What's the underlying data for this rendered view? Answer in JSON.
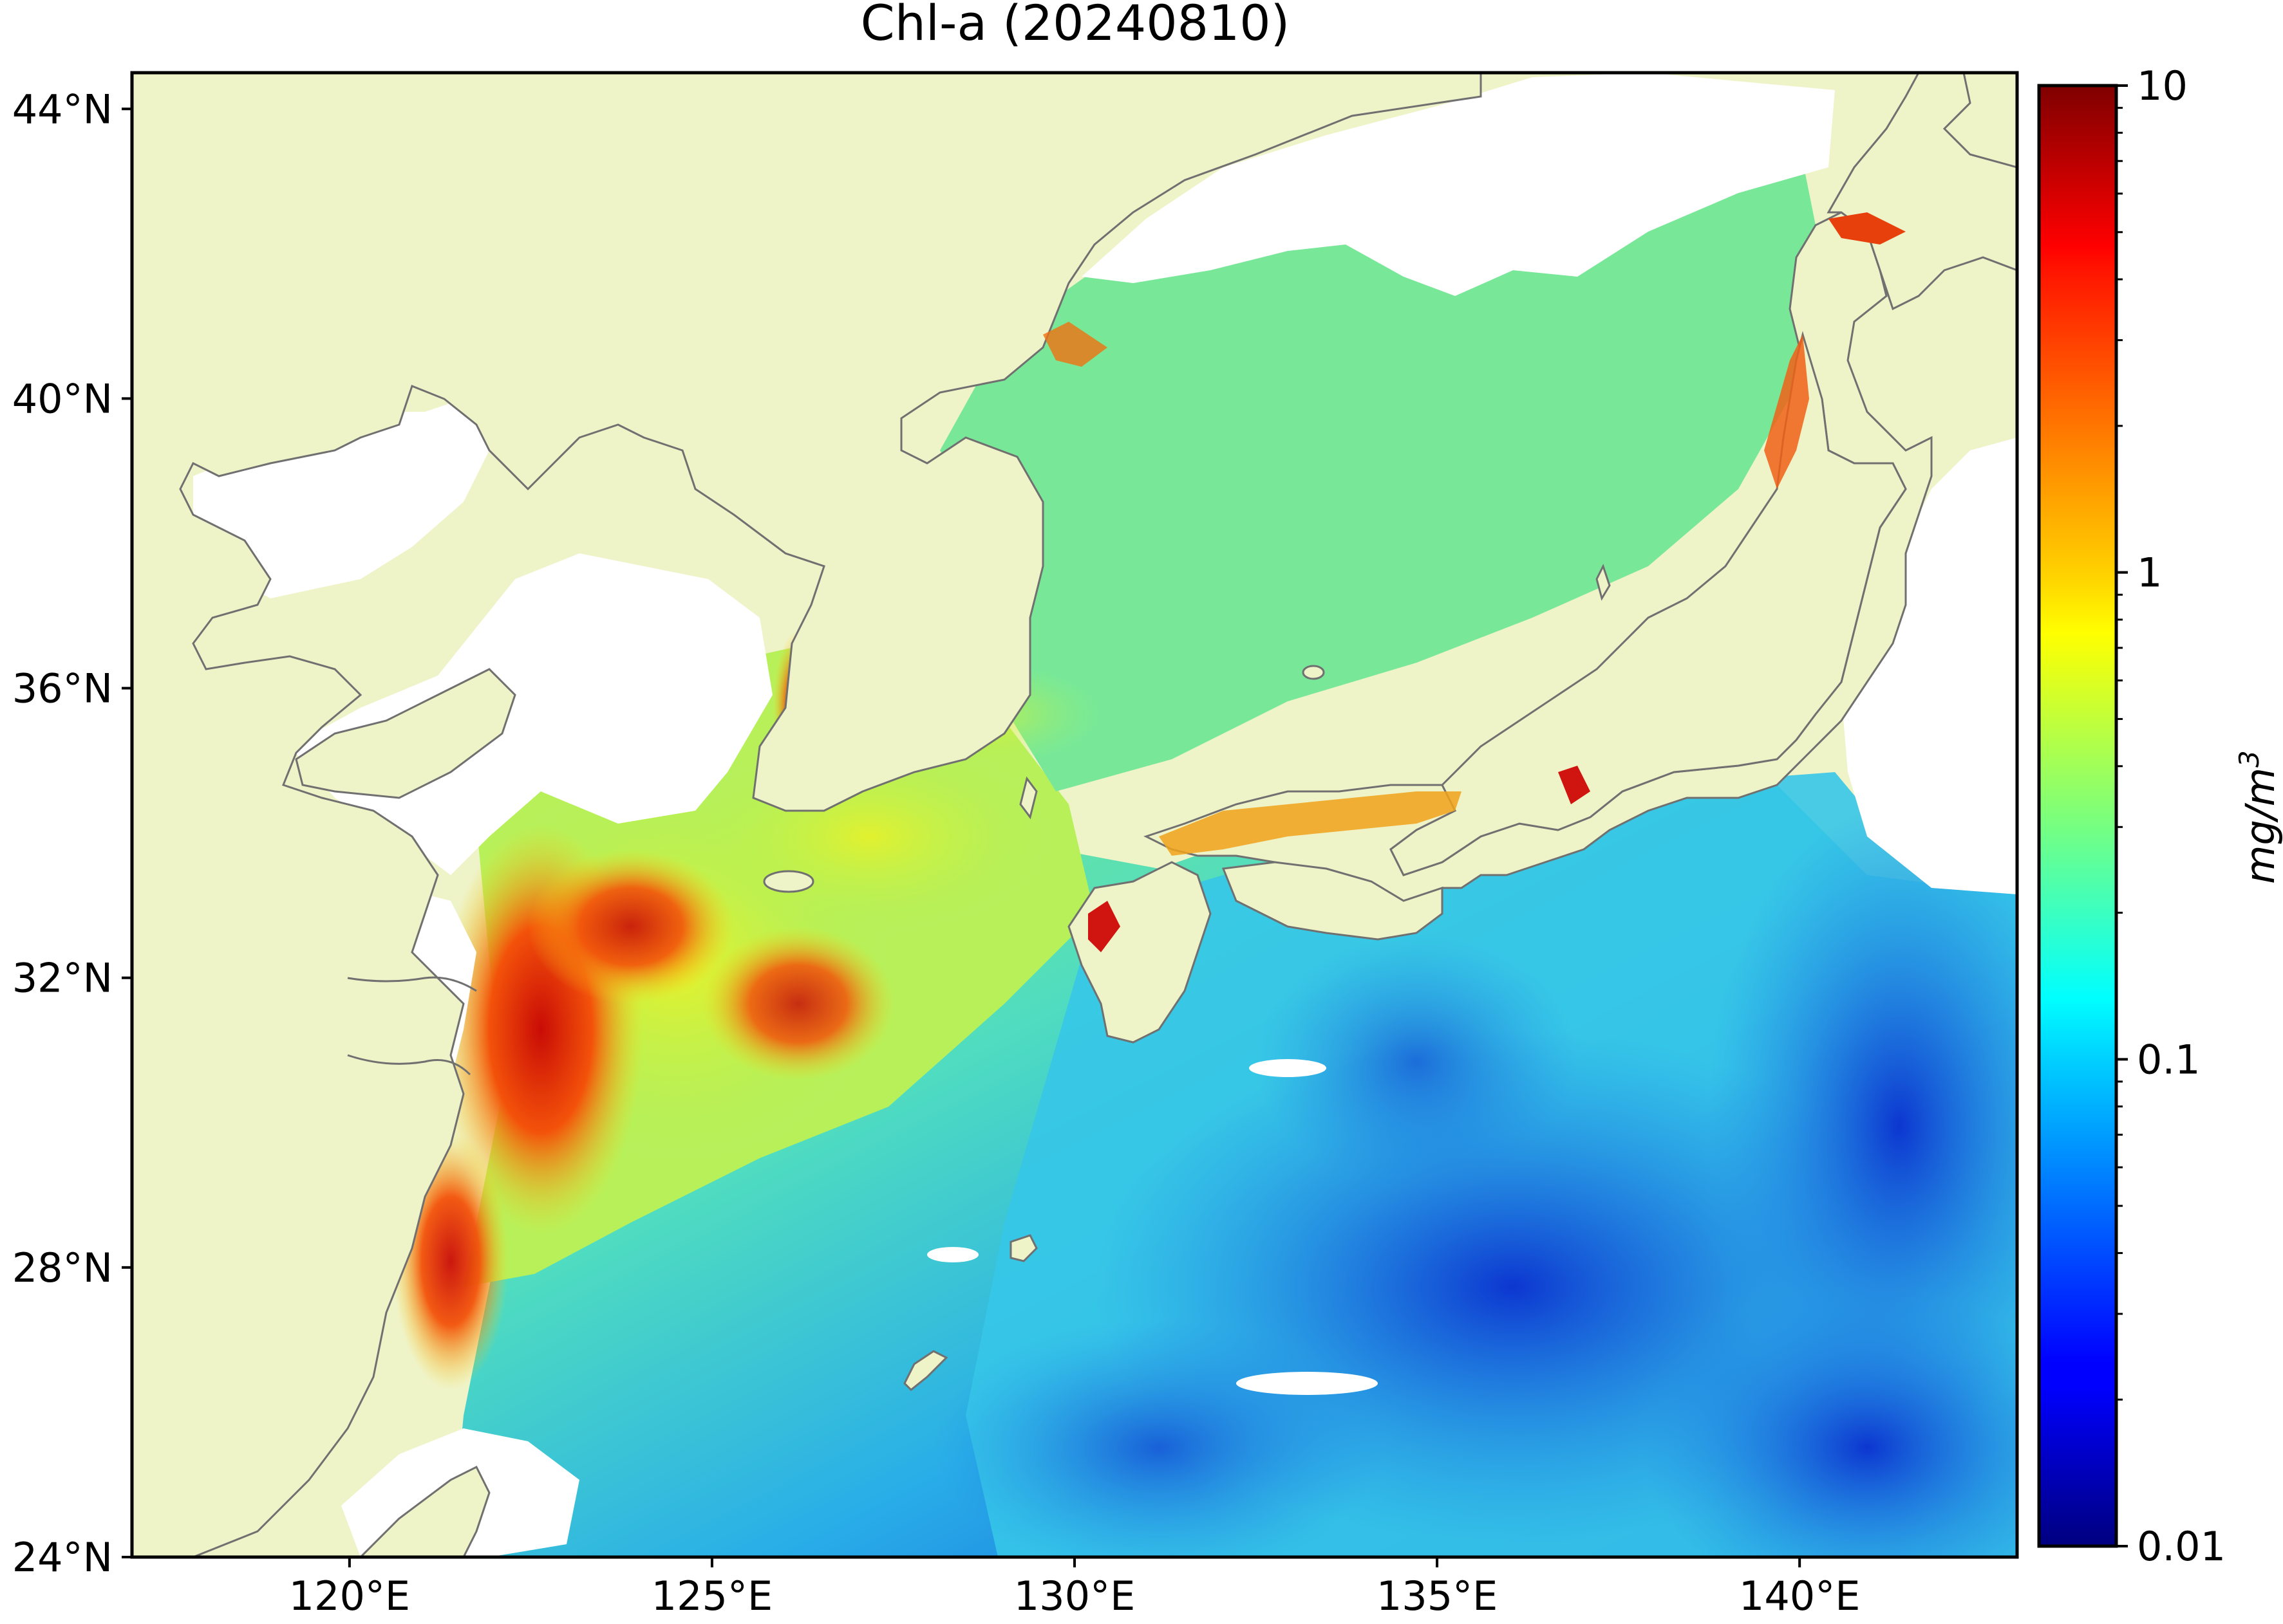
{
  "title": "Chl-a (20240810)",
  "map": {
    "lon_range": [
      117,
      143
    ],
    "lat_range": [
      24,
      44.5
    ],
    "lon_ticks": [
      {
        "value": 120,
        "label": "120°E"
      },
      {
        "value": 125,
        "label": "125°E"
      },
      {
        "value": 130,
        "label": "130°E"
      },
      {
        "value": 135,
        "label": "135°E"
      },
      {
        "value": 140,
        "label": "140°E"
      }
    ],
    "lat_ticks": [
      {
        "value": 44,
        "label": "44°N"
      },
      {
        "value": 40,
        "label": "40°N"
      },
      {
        "value": 36,
        "label": "36°N"
      },
      {
        "value": 32,
        "label": "32°N"
      },
      {
        "value": 28,
        "label": "28°N"
      },
      {
        "value": 24,
        "label": "24°N"
      }
    ]
  },
  "colorbar": {
    "label": "mg/m3",
    "label_base": "mg/m",
    "label_exponent": "3",
    "scale": "log",
    "range": [
      0.01,
      10
    ],
    "ticks": [
      {
        "value": 10,
        "label": "10"
      },
      {
        "value": 1,
        "label": "1"
      },
      {
        "value": 0.1,
        "label": "0.1"
      },
      {
        "value": 0.01,
        "label": "0.01"
      }
    ],
    "colormap": "jet"
  },
  "colors": {
    "land": "#eff3c8",
    "no_data": "#ffffff",
    "coastline": "#707070",
    "ocean_low": "#0a34d4",
    "ocean_mid": "#27c3ee",
    "ocean_high": "#e8150d"
  }
}
